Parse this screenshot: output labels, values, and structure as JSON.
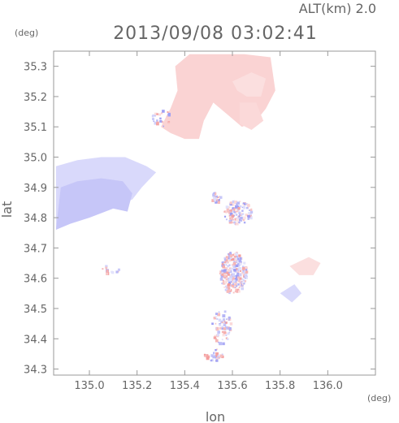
{
  "header": {
    "alt_label": "ALT(km)  2.0",
    "datetime": "2013/09/08 03:02:41"
  },
  "chart_data": {
    "type": "heatmap",
    "title": "2013/09/08 03:02:41",
    "xlabel": "lon",
    "ylabel": "lat",
    "xunit": "(deg)",
    "yunit": "(deg)",
    "xlim": [
      134.85,
      136.2
    ],
    "ylim": [
      34.28,
      35.35
    ],
    "xticks": [
      135.0,
      135.2,
      135.4,
      135.6,
      135.8,
      136.0
    ],
    "yticks": [
      34.3,
      34.4,
      34.5,
      34.6,
      34.7,
      34.8,
      34.9,
      35.0,
      35.1,
      35.2,
      35.3
    ],
    "xtick_labels": [
      "135.0",
      "135.2",
      "135.4",
      "135.6",
      "135.8",
      "136.0"
    ],
    "ytick_labels": [
      "34.3",
      "34.4",
      "34.5",
      "34.6",
      "34.7",
      "34.8",
      "34.9",
      "35.0",
      "35.1",
      "35.2",
      "35.3"
    ],
    "grid": false,
    "colors": {
      "positive": "#f08080",
      "negative": "#8080f0"
    },
    "regions": [
      {
        "sign": "positive",
        "intensity": 0.35,
        "polygon": [
          [
            135.36,
            35.3
          ],
          [
            135.42,
            35.34
          ],
          [
            135.55,
            35.34
          ],
          [
            135.65,
            35.34
          ],
          [
            135.76,
            35.33
          ],
          [
            135.78,
            35.22
          ],
          [
            135.74,
            35.16
          ],
          [
            135.7,
            35.12
          ],
          [
            135.64,
            35.1
          ],
          [
            135.58,
            35.14
          ],
          [
            135.52,
            35.18
          ],
          [
            135.48,
            35.12
          ],
          [
            135.46,
            35.06
          ],
          [
            135.4,
            35.06
          ],
          [
            135.34,
            35.08
          ],
          [
            135.3,
            35.1
          ],
          [
            135.34,
            35.16
          ],
          [
            135.37,
            35.22
          ]
        ]
      },
      {
        "sign": "positive",
        "intensity": 0.25,
        "polygon": [
          [
            135.6,
            35.25
          ],
          [
            135.68,
            35.28
          ],
          [
            135.74,
            35.26
          ],
          [
            135.72,
            35.2
          ],
          [
            135.66,
            35.2
          ],
          [
            135.62,
            35.22
          ]
        ]
      },
      {
        "sign": "positive",
        "intensity": 0.3,
        "polygon": [
          [
            135.63,
            35.18
          ],
          [
            135.7,
            35.18
          ],
          [
            135.73,
            35.12
          ],
          [
            135.68,
            35.09
          ],
          [
            135.63,
            35.11
          ]
        ]
      },
      {
        "sign": "negative",
        "intensity": 0.3,
        "polygon": [
          [
            134.86,
            34.97
          ],
          [
            134.95,
            34.99
          ],
          [
            135.05,
            35.0
          ],
          [
            135.15,
            35.0
          ],
          [
            135.24,
            34.97
          ],
          [
            135.28,
            34.95
          ],
          [
            135.22,
            34.9
          ],
          [
            135.18,
            34.86
          ],
          [
            135.1,
            34.84
          ],
          [
            135.0,
            34.82
          ],
          [
            134.9,
            34.8
          ],
          [
            134.86,
            34.76
          ]
        ]
      },
      {
        "sign": "negative",
        "intensity": 0.45,
        "polygon": [
          [
            134.86,
            34.76
          ],
          [
            134.92,
            34.78
          ],
          [
            135.0,
            34.8
          ],
          [
            135.1,
            34.83
          ],
          [
            135.16,
            34.82
          ],
          [
            135.18,
            34.88
          ],
          [
            135.14,
            34.92
          ],
          [
            135.05,
            34.93
          ],
          [
            134.95,
            34.92
          ],
          [
            134.88,
            34.9
          ]
        ]
      },
      {
        "sign": "positive",
        "intensity": 0.25,
        "polygon": [
          [
            135.84,
            34.64
          ],
          [
            135.92,
            34.67
          ],
          [
            135.97,
            34.65
          ],
          [
            135.94,
            34.61
          ],
          [
            135.88,
            34.61
          ]
        ]
      },
      {
        "sign": "negative",
        "intensity": 0.3,
        "polygon": [
          [
            135.8,
            34.55
          ],
          [
            135.86,
            34.58
          ],
          [
            135.89,
            34.55
          ],
          [
            135.85,
            34.52
          ]
        ]
      }
    ],
    "scatter_clusters": [
      {
        "center": [
          135.6,
          34.62
        ],
        "spread": [
          0.055,
          0.07
        ],
        "count": 260
      },
      {
        "center": [
          135.62,
          34.82
        ],
        "spread": [
          0.06,
          0.04
        ],
        "count": 110
      },
      {
        "center": [
          135.53,
          34.87
        ],
        "spread": [
          0.02,
          0.02
        ],
        "count": 30
      },
      {
        "center": [
          135.55,
          34.44
        ],
        "spread": [
          0.04,
          0.06
        ],
        "count": 60
      },
      {
        "center": [
          135.52,
          34.35
        ],
        "spread": [
          0.04,
          0.02
        ],
        "count": 30
      },
      {
        "center": [
          135.3,
          35.13
        ],
        "spread": [
          0.04,
          0.03
        ],
        "count": 25
      },
      {
        "center": [
          135.08,
          34.63
        ],
        "spread": [
          0.04,
          0.02
        ],
        "count": 12
      }
    ]
  }
}
